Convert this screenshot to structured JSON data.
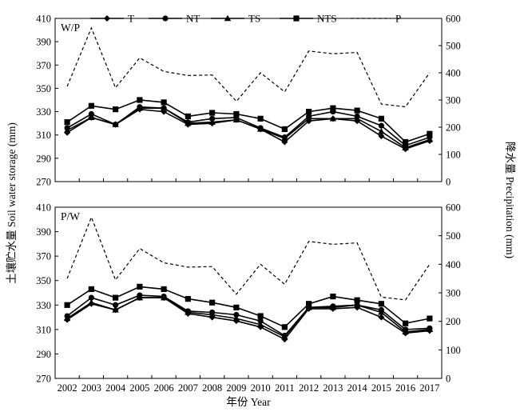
{
  "chart_data": [
    {
      "type": "line",
      "panel_label": "W/P",
      "x": [
        2002,
        2003,
        2004,
        2005,
        2006,
        2007,
        2008,
        2009,
        2010,
        2011,
        2012,
        2013,
        2014,
        2015,
        2016,
        2017
      ],
      "ylabel": "土壤贮水量 Soil water storage (mm)",
      "ylim": [
        270,
        410
      ],
      "yticks": [
        270,
        290,
        310,
        330,
        350,
        370,
        390,
        410
      ],
      "y2label": "降水量 Precipitation (mm)",
      "y2lim": [
        0,
        600
      ],
      "y2ticks": [
        0,
        100,
        200,
        300,
        400,
        500,
        600
      ],
      "legend": "top",
      "series": [
        {
          "name": "T",
          "marker": "diamond",
          "axis": "left",
          "values": [
            312,
            325,
            319,
            332,
            330,
            319,
            320,
            323,
            315,
            304,
            322,
            324,
            322,
            309,
            298,
            305
          ]
        },
        {
          "name": "NT",
          "marker": "circle",
          "axis": "left",
          "values": [
            316,
            328,
            319,
            334,
            333,
            321,
            324,
            325,
            316,
            308,
            326,
            330,
            326,
            318,
            301,
            308
          ]
        },
        {
          "name": "TS",
          "marker": "triangle",
          "axis": "left",
          "values": [
            314,
            325,
            319,
            333,
            333,
            320,
            321,
            323,
            315,
            307,
            324,
            324,
            324,
            313,
            299,
            306
          ]
        },
        {
          "name": "NTS",
          "marker": "square",
          "axis": "left",
          "values": [
            321,
            335,
            332,
            340,
            338,
            326,
            329,
            328,
            324,
            315,
            330,
            333,
            331,
            324,
            304,
            311
          ]
        },
        {
          "name": "P",
          "marker": "none",
          "dashed": true,
          "axis": "right",
          "values": [
            350,
            565,
            345,
            455,
            405,
            390,
            392,
            295,
            400,
            330,
            480,
            470,
            475,
            285,
            275,
            400
          ]
        }
      ]
    },
    {
      "type": "line",
      "panel_label": "P/W",
      "x": [
        2002,
        2003,
        2004,
        2005,
        2006,
        2007,
        2008,
        2009,
        2010,
        2011,
        2012,
        2013,
        2014,
        2015,
        2016,
        2017
      ],
      "xlabel": "年份 Year",
      "ylabel": "土壤贮水量 Soil water storage (mm)",
      "ylim": [
        270,
        410
      ],
      "yticks": [
        270,
        290,
        310,
        330,
        350,
        370,
        390,
        410
      ],
      "y2label": "降水量 Precipitation (mm)",
      "y2lim": [
        0,
        600
      ],
      "y2ticks": [
        0,
        100,
        200,
        300,
        400,
        500,
        600
      ],
      "series": [
        {
          "name": "T",
          "marker": "diamond",
          "axis": "left",
          "values": [
            318,
            331,
            326,
            336,
            336,
            323,
            320,
            317,
            312,
            302,
            327,
            327,
            328,
            320,
            307,
            309
          ]
        },
        {
          "name": "NT",
          "marker": "circle",
          "axis": "left",
          "values": [
            321,
            336,
            330,
            338,
            337,
            325,
            324,
            322,
            317,
            305,
            328,
            329,
            330,
            326,
            310,
            311
          ]
        },
        {
          "name": "TS",
          "marker": "triangle",
          "axis": "left",
          "values": [
            319,
            332,
            326,
            336,
            336,
            324,
            322,
            319,
            314,
            304,
            328,
            328,
            330,
            324,
            308,
            310
          ]
        },
        {
          "name": "NTS",
          "marker": "square",
          "axis": "left",
          "values": [
            330,
            343,
            336,
            345,
            343,
            335,
            332,
            328,
            321,
            312,
            331,
            337,
            334,
            331,
            315,
            319
          ]
        },
        {
          "name": "P",
          "marker": "none",
          "dashed": true,
          "axis": "right",
          "values": [
            350,
            565,
            345,
            455,
            405,
            390,
            392,
            295,
            400,
            330,
            480,
            470,
            475,
            285,
            275,
            400
          ]
        }
      ]
    }
  ]
}
